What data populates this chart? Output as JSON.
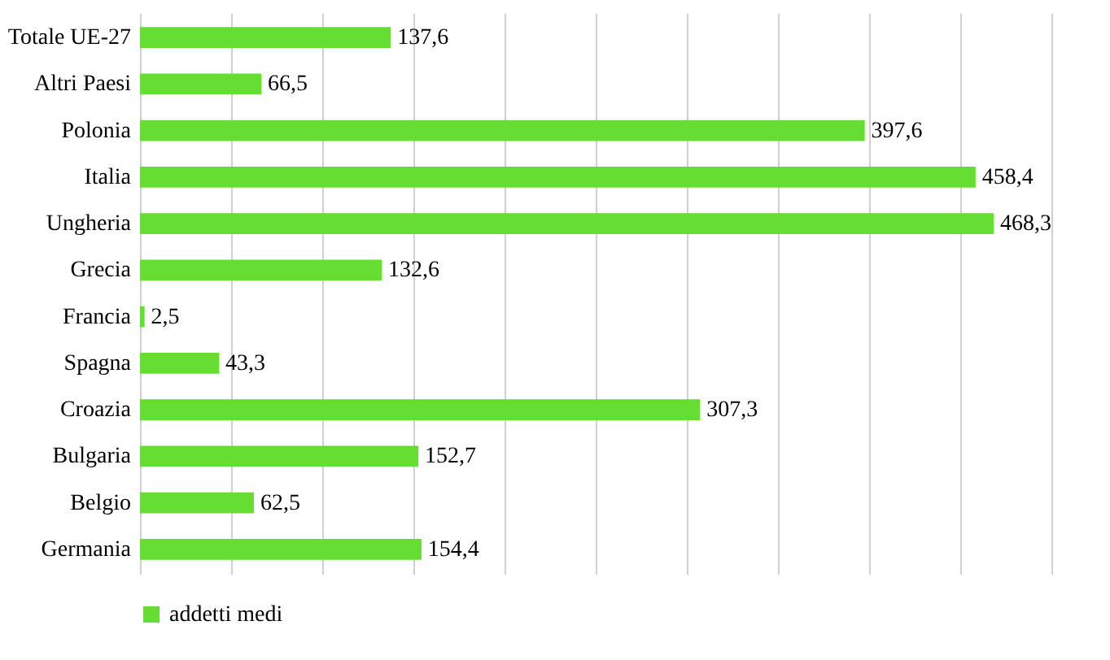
{
  "chart_data": {
    "type": "bar",
    "orientation": "horizontal",
    "categories": [
      "Totale UE-27",
      "Altri Paesi",
      "Polonia",
      "Italia",
      "Ungheria",
      "Grecia",
      "Francia",
      "Spagna",
      "Croazia",
      "Bulgaria",
      "Belgio",
      "Germania"
    ],
    "series": [
      {
        "name": "addetti medi",
        "color": "#66dd33",
        "values": [
          137.6,
          66.5,
          397.6,
          458.4,
          468.3,
          132.6,
          2.5,
          43.3,
          307.3,
          152.7,
          62.5,
          154.4
        ],
        "value_labels": [
          "137,6",
          "66,5",
          "397,6",
          "458,4",
          "468,3",
          "132,6",
          "2,5",
          "43,3",
          "307,3",
          "152,7",
          "62,5",
          "154,4"
        ]
      }
    ],
    "xlim": [
      0,
      500
    ],
    "xticks": [
      {
        "value": 0,
        "label": null
      },
      {
        "value": 50,
        "label": null
      },
      {
        "value": 100,
        "label": null
      },
      {
        "value": 150,
        "label": null
      },
      {
        "value": 200,
        "label": null
      },
      {
        "value": 250,
        "label": null
      },
      {
        "value": 300,
        "label": null
      },
      {
        "value": 350,
        "label": null
      },
      {
        "value": 400,
        "label": null
      },
      {
        "value": 450,
        "label": null
      },
      {
        "value": 500,
        "label": null
      }
    ],
    "grid": "x",
    "legend": "bottom",
    "tick_labels": "y"
  }
}
